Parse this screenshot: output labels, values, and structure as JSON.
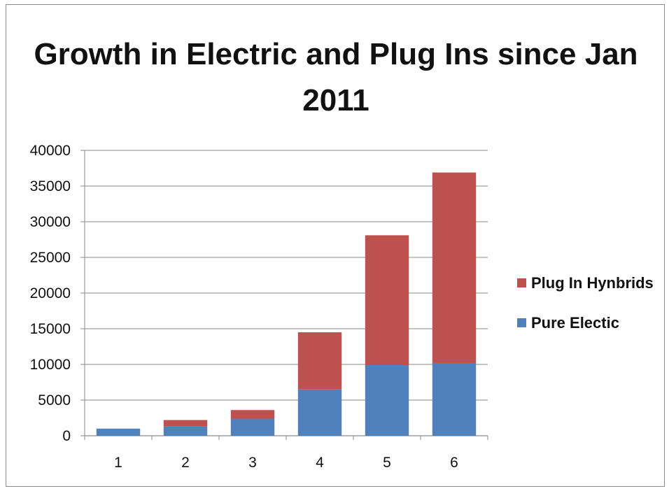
{
  "chart_data": {
    "type": "bar",
    "stacked": true,
    "title": "Growth in Electric and Plug Ins since Jan 2011",
    "categories": [
      "1",
      "2",
      "3",
      "4",
      "5",
      "6"
    ],
    "series": [
      {
        "name": "Pure Electic",
        "color": "#4f81bd",
        "values": [
          1000,
          1300,
          2400,
          6500,
          9900,
          10200
        ]
      },
      {
        "name": "Plug In Hynbrids",
        "color": "#c0504d",
        "values": [
          0,
          900,
          1200,
          8000,
          18200,
          26700
        ]
      }
    ],
    "ylim": [
      0,
      40000
    ],
    "yticks": [
      "0",
      "5000",
      "10000",
      "15000",
      "20000",
      "25000",
      "30000",
      "35000",
      "40000"
    ],
    "grid": true,
    "legend_position": "right",
    "legend_order": [
      "Plug In Hynbrids",
      "Pure Electic"
    ]
  }
}
